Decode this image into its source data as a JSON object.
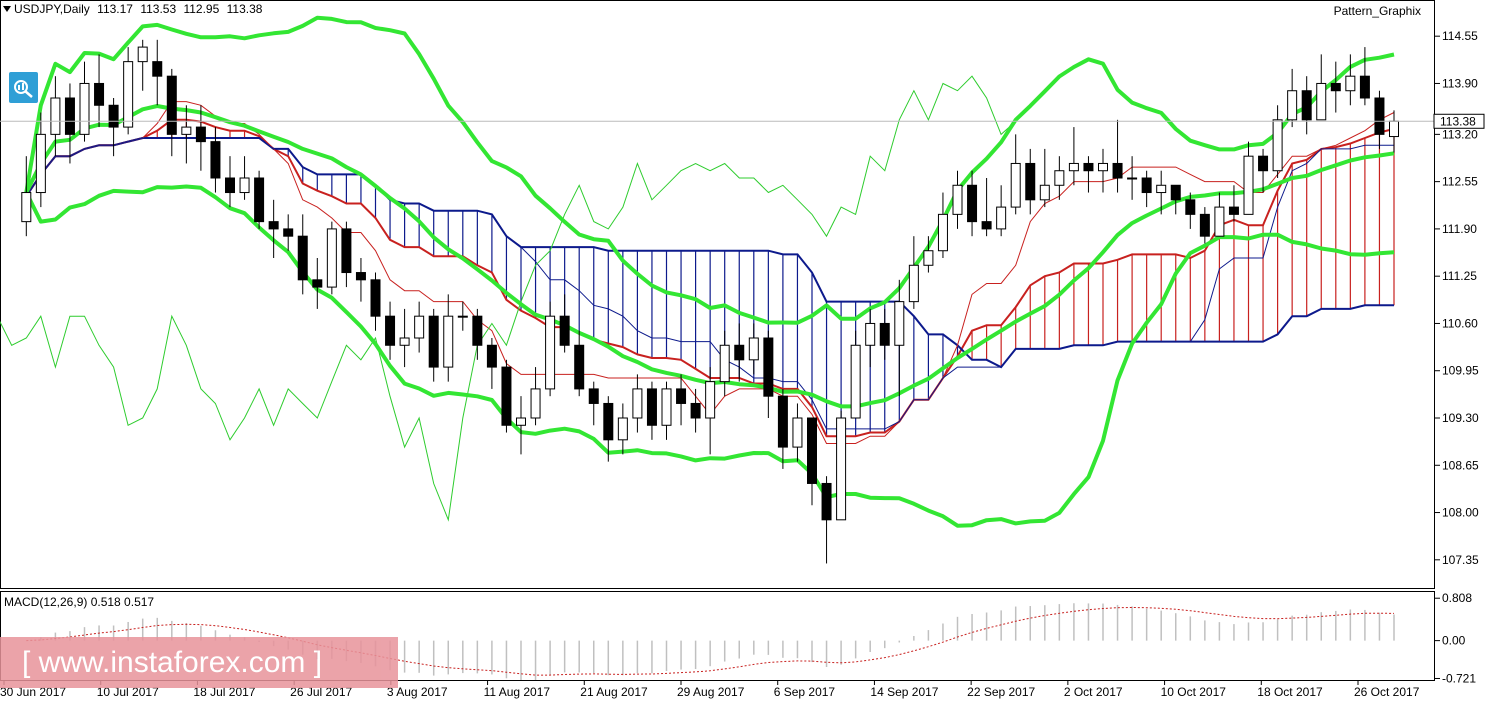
{
  "header": {
    "symbol": "USDJPY,Daily",
    "open": "113.17",
    "high": "113.53",
    "low": "112.95",
    "close": "113.38",
    "brand": "Pattern_Graphix"
  },
  "watermark": "[ www.instaforex.com ]",
  "colors": {
    "bollinger": "#33e633",
    "tenkan": "#c8211f",
    "kijun": "#0d1a8c",
    "chikou": "#2ecc2e",
    "cloud_bull": "#c8211f",
    "cloud_bear": "#0d1a8c",
    "candle_bear": "#000000",
    "candle_bull": "#ffffff"
  },
  "chart_data": [
    {
      "type": "candlestick",
      "title": "USDJPY,Daily",
      "price_ticks": [
        "114.55",
        "113.90",
        "113.20",
        "112.55",
        "111.90",
        "111.25",
        "110.60",
        "109.95",
        "109.30",
        "108.65",
        "108.00",
        "107.35"
      ],
      "current_price": "113.38",
      "ylim": [
        107.1,
        114.8
      ],
      "x_labels": [
        "30 Jun 2017",
        "10 Jul 2017",
        "18 Jul 2017",
        "26 Jul 2017",
        "3 Aug 2017",
        "11 Aug 2017",
        "21 Aug 2017",
        "29 Aug 2017",
        "6 Sep 2017",
        "14 Sep 2017",
        "22 Sep 2017",
        "2 Oct 2017",
        "10 Oct 2017",
        "18 Oct 2017",
        "26 Oct 2017"
      ],
      "candles": [
        [
          112.0,
          112.4,
          112.9,
          111.8
        ],
        [
          112.4,
          113.2,
          113.5,
          112.2
        ],
        [
          113.2,
          113.7,
          114.0,
          112.9
        ],
        [
          113.7,
          113.2,
          113.9,
          112.8
        ],
        [
          113.2,
          113.9,
          114.2,
          113.1
        ],
        [
          113.9,
          113.6,
          114.3,
          113.3
        ],
        [
          113.6,
          113.3,
          113.7,
          112.9
        ],
        [
          113.3,
          114.2,
          114.4,
          113.2
        ],
        [
          114.2,
          114.4,
          114.5,
          113.8
        ],
        [
          114.2,
          114.0,
          114.5,
          113.6
        ],
        [
          114.0,
          113.2,
          114.1,
          112.9
        ],
        [
          113.2,
          113.3,
          113.6,
          112.8
        ],
        [
          113.3,
          113.1,
          113.6,
          112.7
        ],
        [
          113.1,
          112.6,
          113.3,
          112.4
        ],
        [
          112.6,
          112.4,
          112.9,
          112.2
        ],
        [
          112.4,
          112.6,
          112.9,
          112.3
        ],
        [
          112.6,
          112.0,
          112.7,
          111.9
        ],
        [
          112.0,
          111.9,
          112.3,
          111.5
        ],
        [
          111.9,
          111.8,
          112.1,
          111.6
        ],
        [
          111.8,
          111.2,
          112.1,
          111.0
        ],
        [
          111.2,
          111.1,
          111.5,
          110.8
        ],
        [
          111.1,
          111.9,
          112.0,
          111.0
        ],
        [
          111.9,
          111.3,
          112.0,
          111.1
        ],
        [
          111.3,
          111.2,
          111.5,
          110.9
        ],
        [
          111.2,
          110.7,
          111.3,
          110.5
        ],
        [
          110.7,
          110.3,
          110.9,
          110.1
        ],
        [
          110.3,
          110.4,
          110.8,
          110.0
        ],
        [
          110.4,
          110.7,
          110.9,
          110.2
        ],
        [
          110.7,
          110.0,
          110.8,
          109.8
        ],
        [
          110.0,
          110.7,
          111.0,
          109.8
        ],
        [
          110.7,
          110.7,
          110.9,
          110.5
        ],
        [
          110.7,
          110.3,
          110.8,
          110.1
        ],
        [
          110.3,
          110.0,
          110.4,
          109.7
        ],
        [
          110.0,
          109.2,
          110.1,
          109.1
        ],
        [
          109.2,
          109.3,
          109.6,
          108.8
        ],
        [
          109.3,
          109.7,
          110.0,
          109.2
        ],
        [
          109.7,
          110.7,
          110.9,
          109.6
        ],
        [
          110.7,
          110.3,
          111.0,
          110.2
        ],
        [
          110.3,
          109.7,
          110.5,
          109.6
        ],
        [
          109.7,
          109.5,
          109.8,
          109.2
        ],
        [
          109.5,
          109.0,
          109.6,
          108.7
        ],
        [
          109.0,
          109.3,
          109.5,
          108.8
        ],
        [
          109.3,
          109.7,
          109.9,
          109.1
        ],
        [
          109.7,
          109.2,
          109.8,
          109.0
        ],
        [
          109.2,
          109.7,
          109.8,
          109.0
        ],
        [
          109.7,
          109.5,
          109.9,
          109.2
        ],
        [
          109.5,
          109.3,
          109.7,
          109.1
        ],
        [
          109.3,
          109.8,
          110.0,
          108.8
        ],
        [
          109.8,
          110.3,
          110.5,
          109.6
        ],
        [
          110.3,
          110.1,
          110.6,
          109.8
        ],
        [
          110.1,
          110.4,
          110.6,
          109.9
        ],
        [
          110.4,
          109.6,
          110.5,
          109.3
        ],
        [
          109.6,
          108.9,
          109.7,
          108.6
        ],
        [
          108.9,
          109.3,
          109.5,
          108.7
        ],
        [
          109.3,
          108.4,
          109.3,
          108.1
        ],
        [
          108.4,
          107.9,
          108.5,
          107.3
        ],
        [
          107.9,
          109.3,
          109.4,
          107.9
        ],
        [
          109.3,
          110.3,
          110.5,
          109.3
        ],
        [
          110.3,
          110.6,
          110.8,
          110.0
        ],
        [
          110.6,
          110.3,
          110.8,
          110.1
        ],
        [
          110.3,
          110.9,
          111.2,
          109.6
        ],
        [
          110.9,
          111.4,
          111.8,
          110.8
        ],
        [
          111.4,
          111.6,
          111.8,
          111.3
        ],
        [
          111.6,
          112.1,
          112.4,
          111.5
        ],
        [
          112.1,
          112.5,
          112.7,
          111.9
        ],
        [
          112.5,
          112.0,
          112.7,
          111.8
        ],
        [
          112.0,
          111.9,
          112.6,
          111.8
        ],
        [
          111.9,
          112.2,
          112.5,
          111.8
        ],
        [
          112.2,
          112.8,
          113.2,
          112.1
        ],
        [
          112.8,
          112.3,
          113.0,
          112.1
        ],
        [
          112.3,
          112.5,
          113.0,
          112.2
        ],
        [
          112.5,
          112.7,
          112.9,
          112.3
        ],
        [
          112.7,
          112.8,
          113.3,
          112.5
        ],
        [
          112.8,
          112.7,
          112.9,
          112.4
        ],
        [
          112.7,
          112.8,
          113.0,
          112.4
        ],
        [
          112.8,
          112.6,
          113.4,
          112.4
        ],
        [
          112.6,
          112.6,
          112.9,
          112.3
        ],
        [
          112.6,
          112.4,
          112.7,
          112.2
        ],
        [
          112.4,
          112.5,
          112.7,
          112.1
        ],
        [
          112.5,
          112.3,
          112.5,
          112.1
        ],
        [
          112.3,
          112.1,
          112.4,
          111.9
        ],
        [
          112.1,
          111.8,
          112.2,
          111.7
        ],
        [
          111.8,
          112.2,
          112.4,
          111.8
        ],
        [
          112.2,
          112.1,
          112.5,
          112.0
        ],
        [
          112.1,
          112.9,
          113.1,
          112.1
        ],
        [
          112.9,
          112.7,
          113.0,
          112.4
        ],
        [
          112.7,
          113.4,
          113.6,
          112.6
        ],
        [
          113.4,
          113.8,
          114.1,
          113.3
        ],
        [
          113.8,
          113.4,
          114.0,
          113.2
        ],
        [
          113.4,
          113.9,
          114.3,
          113.5
        ],
        [
          113.9,
          113.8,
          114.2,
          113.5
        ],
        [
          113.8,
          114.0,
          114.3,
          113.6
        ],
        [
          114.0,
          113.7,
          114.4,
          113.6
        ],
        [
          113.7,
          113.2,
          113.8,
          113.0
        ],
        [
          113.17,
          113.38,
          113.53,
          112.95
        ]
      ]
    },
    {
      "type": "macd",
      "title": "MACD(12,26,9) 0.518 0.517",
      "macd": "0.518",
      "signal": "0.517",
      "y_ticks": [
        "0.808",
        "0.00",
        "-0.721"
      ],
      "ylim": [
        -0.75,
        0.85
      ]
    }
  ]
}
